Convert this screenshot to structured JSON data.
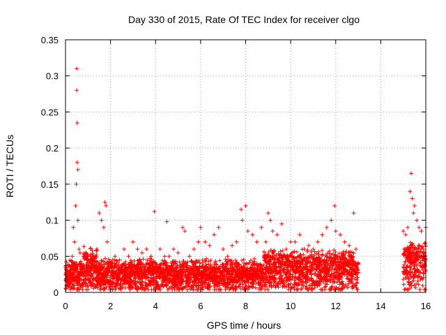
{
  "chart_data": {
    "type": "scatter",
    "title": "Day 330 of 2015, Rate Of TEC Index for receiver clgo",
    "xlabel": "GPS time / hours",
    "ylabel": "ROTI / TECUs",
    "xlim": [
      0,
      16
    ],
    "ylim": [
      0,
      0.35
    ],
    "xticks": [
      0,
      2,
      4,
      6,
      8,
      10,
      12,
      14,
      16
    ],
    "xtick_labels": [
      "0",
      "2",
      "4",
      "6",
      "8",
      "10",
      "12",
      "14",
      "16"
    ],
    "yticks": [
      0,
      0.05,
      0.1,
      0.15,
      0.2,
      0.25,
      0.3,
      0.35
    ],
    "ytick_labels": [
      "0",
      "0.05",
      "0.1",
      "0.15",
      "0.2",
      "0.25",
      "0.3",
      "0.35"
    ],
    "grid": true,
    "marker": "+",
    "color": "#ff0000",
    "series": [
      {
        "name": "ROTI",
        "x": [
          0.1,
          0.2,
          0.3,
          0.35,
          0.4,
          0.45,
          0.48,
          0.5,
          0.5,
          0.52,
          0.52,
          0.55,
          0.55,
          0.6,
          0.65,
          0.7,
          0.8,
          0.9,
          1.0,
          1.1,
          1.2,
          1.3,
          1.4,
          1.5,
          1.6,
          1.7,
          1.75,
          1.8,
          1.85,
          1.9,
          2.0,
          2.2,
          2.4,
          2.6,
          2.8,
          3.0,
          3.2,
          3.4,
          3.6,
          3.8,
          3.95,
          4.0,
          4.2,
          4.4,
          4.5,
          4.6,
          4.8,
          5.0,
          5.2,
          5.3,
          5.5,
          5.7,
          5.9,
          6.0,
          6.2,
          6.4,
          6.6,
          6.8,
          7.0,
          7.2,
          7.4,
          7.6,
          7.8,
          7.85,
          8.0,
          8.1,
          8.3,
          8.5,
          8.7,
          8.9,
          9.0,
          9.1,
          9.2,
          9.4,
          9.6,
          9.8,
          10.0,
          10.2,
          10.4,
          10.6,
          10.8,
          11.0,
          11.2,
          11.4,
          11.6,
          11.8,
          11.95,
          12.0,
          12.2,
          12.4,
          12.6,
          12.8,
          12.9,
          15.0,
          15.1,
          15.2,
          15.3,
          15.35,
          15.4,
          15.45,
          15.5,
          15.6,
          15.7,
          15.8,
          15.9,
          16.0
        ],
        "y": [
          0.02,
          0.035,
          0.05,
          0.09,
          0.07,
          0.12,
          0.15,
          0.31,
          0.28,
          0.235,
          0.18,
          0.1,
          0.17,
          0.06,
          0.055,
          0.04,
          0.05,
          0.055,
          0.045,
          0.05,
          0.04,
          0.03,
          0.06,
          0.11,
          0.1,
          0.09,
          0.125,
          0.12,
          0.07,
          0.03,
          0.04,
          0.05,
          0.045,
          0.06,
          0.05,
          0.07,
          0.06,
          0.055,
          0.06,
          0.05,
          0.112,
          0.04,
          0.06,
          0.05,
          0.098,
          0.05,
          0.06,
          0.055,
          0.09,
          0.085,
          0.05,
          0.06,
          0.07,
          0.09,
          0.07,
          0.065,
          0.08,
          0.09,
          0.06,
          0.05,
          0.065,
          0.07,
          0.115,
          0.1,
          0.12,
          0.085,
          0.08,
          0.07,
          0.09,
          0.07,
          0.11,
          0.1,
          0.085,
          0.08,
          0.095,
          0.06,
          0.07,
          0.07,
          0.08,
          0.06,
          0.065,
          0.06,
          0.07,
          0.08,
          0.09,
          0.1,
          0.12,
          0.085,
          0.08,
          0.07,
          0.065,
          0.11,
          0.06,
          0.085,
          0.08,
          0.09,
          0.14,
          0.165,
          0.13,
          0.11,
          0.12,
          0.1,
          0.09,
          0.085,
          0.06,
          0.09
        ]
      }
    ],
    "note": "Dense cloud of points between 0 and ~0.05 ROTI across 0–13 h and 15–16 h; data gap from ~13 h to ~15 h."
  }
}
